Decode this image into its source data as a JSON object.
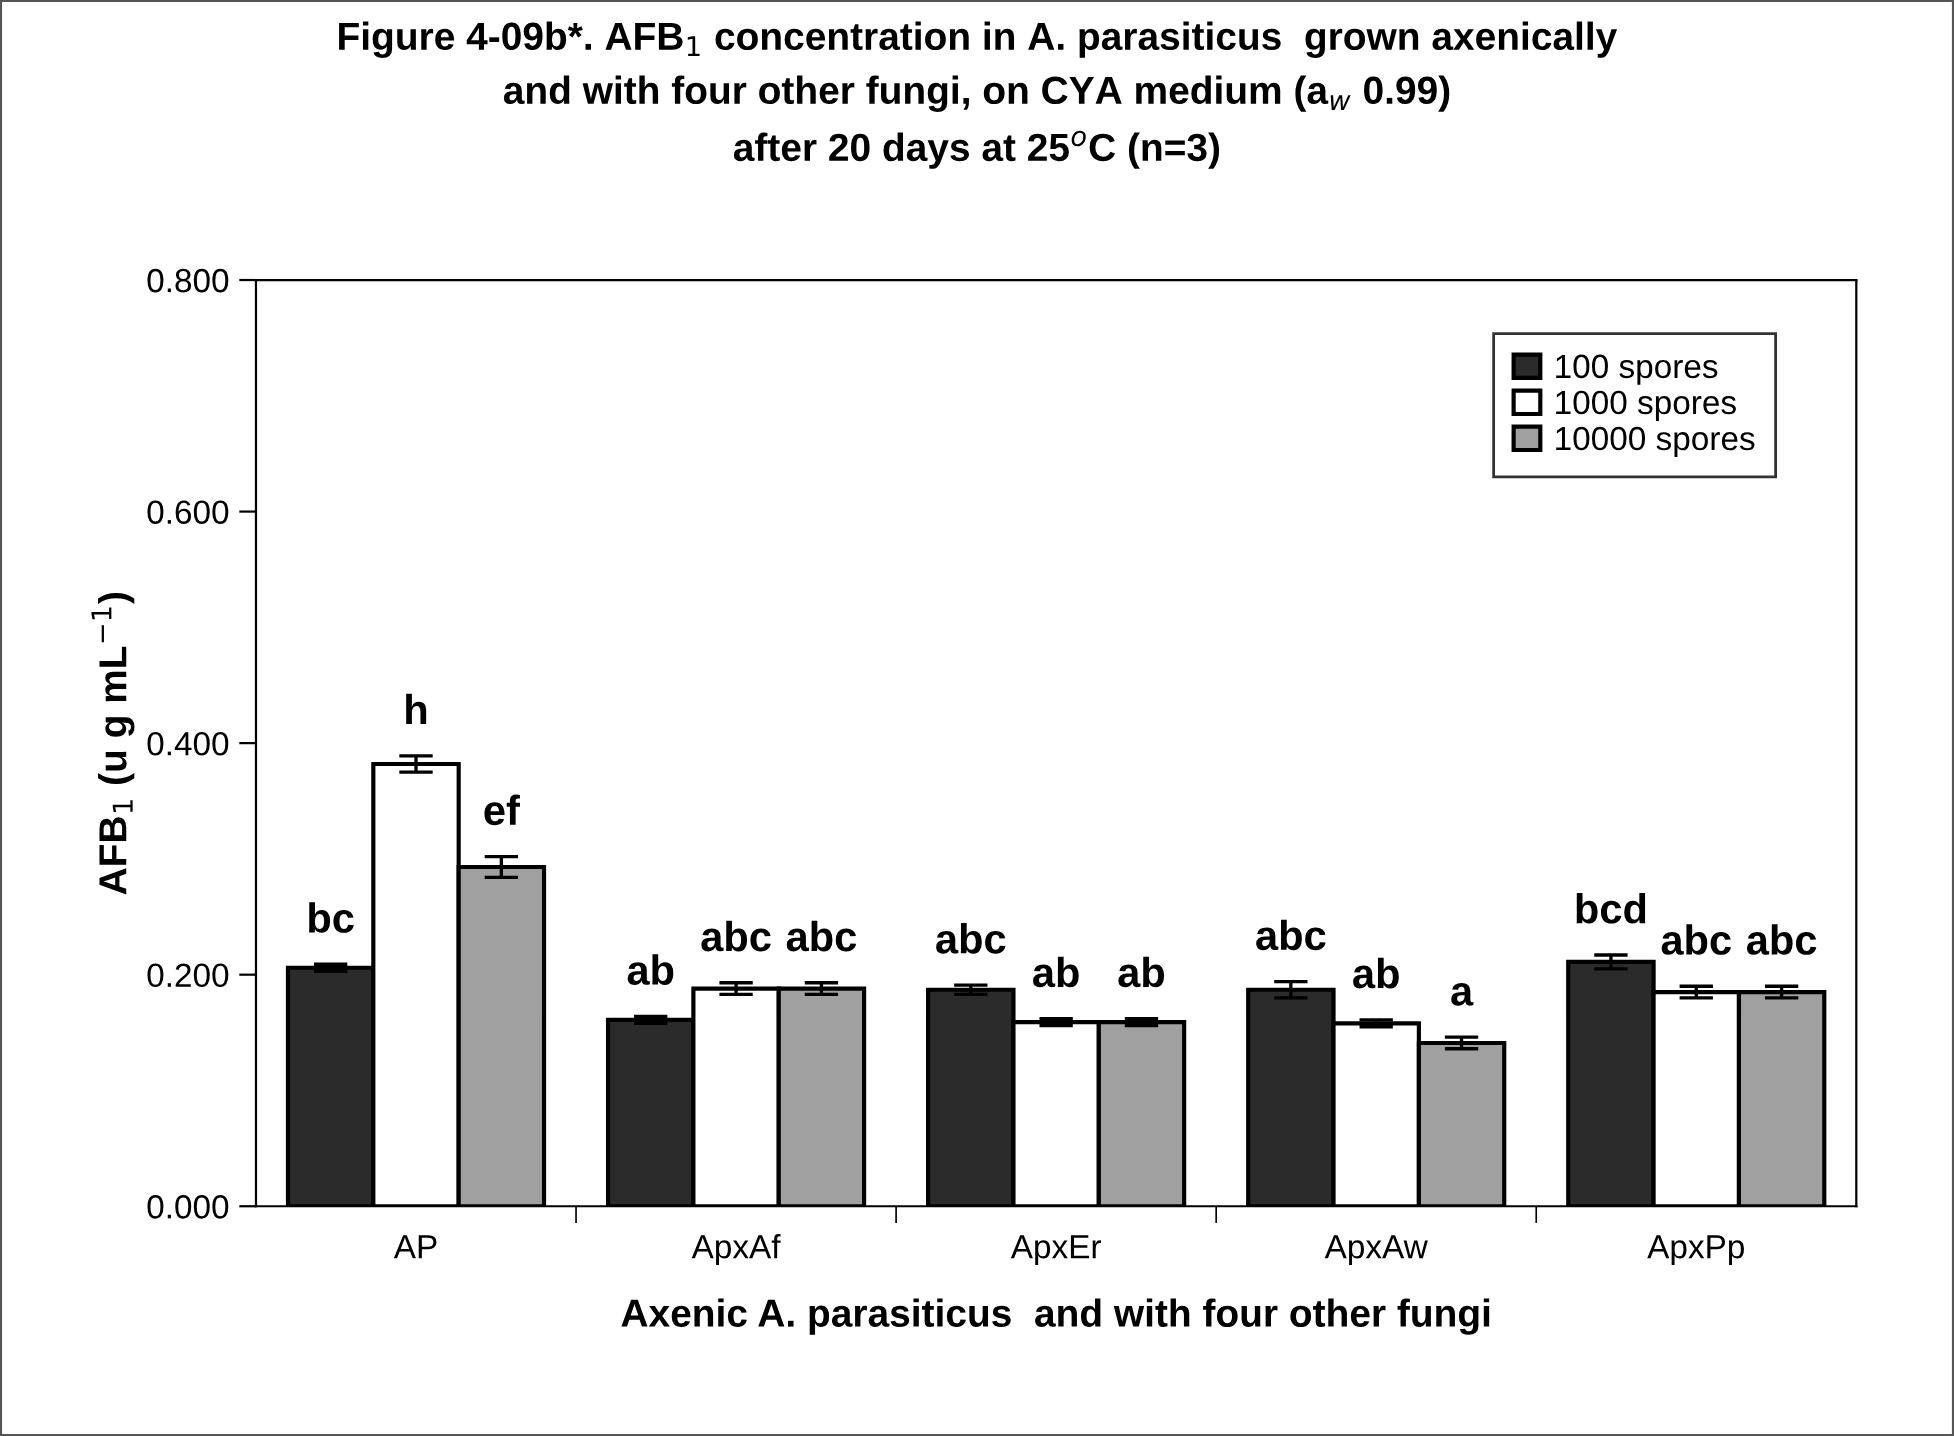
{
  "chart_data": {
    "type": "bar",
    "title": "Figure 4-09b*. AFB$_{1}$ concentration in A. parasiticus  grown axenically\nand with four other fungi, on CYA medium (a$_{w}$ 0.99)\nafter 20 days at 25$^{o}$C (n=3)",
    "xlabel": "Axenic A. parasiticus  and with four other fungi",
    "ylabel": "AFB$_{1}$ (u g mL$^{−1}$)",
    "categories": [
      "AP",
      "ApxAf",
      "ApxEr",
      "ApxAw",
      "ApxPp"
    ],
    "series": [
      {
        "name": "100 spores",
        "color": "#2b2b2b",
        "values": [
          0.206,
          0.161,
          0.187,
          0.187,
          0.211
        ],
        "errors": [
          0.003,
          0.003,
          0.004,
          0.007,
          0.006
        ]
      },
      {
        "name": "1000 spores",
        "color": "#ffffff",
        "values": [
          0.382,
          0.188,
          0.159,
          0.158,
          0.185
        ],
        "errors": [
          0.007,
          0.005,
          0.003,
          0.003,
          0.005
        ]
      },
      {
        "name": "10000 spores",
        "color": "#a0a0a0",
        "values": [
          0.293,
          0.188,
          0.159,
          0.141,
          0.185
        ],
        "errors": [
          0.009,
          0.005,
          0.003,
          0.005,
          0.005
        ]
      }
    ],
    "ylim": [
      0,
      0.8
    ],
    "yticks": [
      {
        "value": 0,
        "label": "0.000"
      },
      {
        "value": 0.2,
        "label": "0.200"
      },
      {
        "value": 0.4,
        "label": "0.400"
      },
      {
        "value": 0.6,
        "label": "0.600"
      },
      {
        "value": 0.8,
        "label": "0.800"
      }
    ],
    "annotations": [
      "bc",
      "h",
      "ef",
      "ab",
      "abc",
      "abc",
      "abc",
      "ab",
      "ab",
      "abc",
      "ab",
      "a",
      "bcd",
      "abc",
      "abc"
    ],
    "legend": "top right",
    "grid": false
  }
}
